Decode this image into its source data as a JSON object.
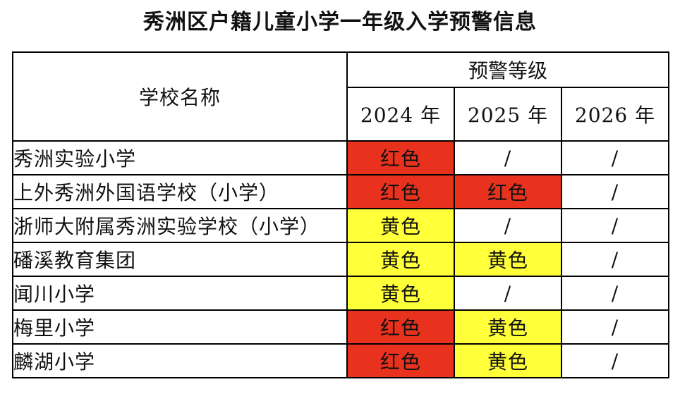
{
  "title": "秀洲区户籍儿童小学一年级入学预警信息",
  "header": {
    "school_name_label": "学校名称",
    "group_label": "预警等级",
    "years": [
      "2024 年",
      "2025 年",
      "2026 年"
    ]
  },
  "colors": {
    "红色": "#e8321e",
    "黄色": "#ffff3a",
    "/": "#ffffff"
  },
  "rows": [
    {
      "school": "秀洲实验小学",
      "levels": [
        "红色",
        "/",
        "/"
      ]
    },
    {
      "school": "上外秀洲外国语学校（小学）",
      "levels": [
        "红色",
        "红色",
        "/"
      ]
    },
    {
      "school": "浙师大附属秀洲实验学校（小学）",
      "levels": [
        "黄色",
        "/",
        "/"
      ]
    },
    {
      "school": "磻溪教育集团",
      "levels": [
        "黄色",
        "黄色",
        "/"
      ]
    },
    {
      "school": "闻川小学",
      "levels": [
        "黄色",
        "/",
        "/"
      ]
    },
    {
      "school": "梅里小学",
      "levels": [
        "红色",
        "黄色",
        "/"
      ]
    },
    {
      "school": "麟湖小学",
      "levels": [
        "红色",
        "黄色",
        "/"
      ]
    }
  ]
}
